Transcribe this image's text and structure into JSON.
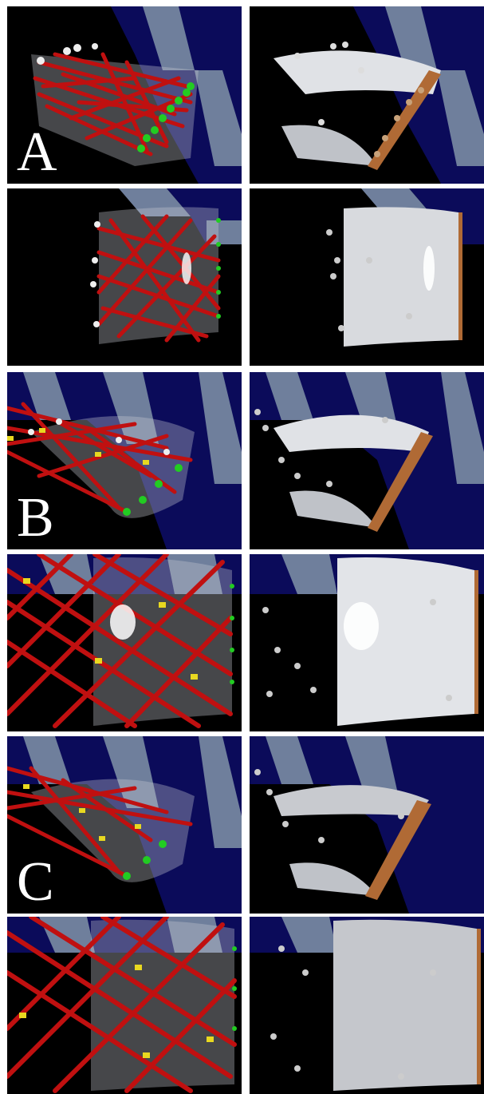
{
  "figure": {
    "labels": [
      "A",
      "B",
      "C"
    ]
  },
  "colors": {
    "fibers": "#c00000",
    "fibers_light": "#b83a3a",
    "green_spheres": "#22cc22",
    "yellow_particles": "#e8d820",
    "white_spheres": "#e8e8e8",
    "orange_spheres": "#c07840",
    "checker_blue": "#0a0a5e",
    "checker_light": "#6a7a9a",
    "sheet": "#d6d8dc"
  }
}
